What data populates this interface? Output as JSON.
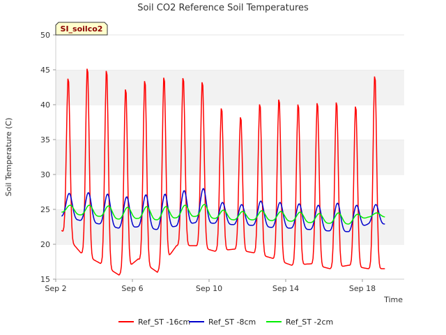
{
  "chart_data": {
    "type": "line",
    "title": "Soil CO2 Reference Soil Temperatures",
    "xlabel": "Time",
    "ylabel": "Soil Temperature (C)",
    "ylim": [
      15,
      50
    ],
    "yticks": [
      15,
      20,
      25,
      30,
      35,
      40,
      45,
      50
    ],
    "xlim": [
      "2016-09-02",
      "2016-09-19"
    ],
    "xtick_labels": [
      "Sep 2",
      "Sep 6",
      "Sep 10",
      "Sep 14",
      "Sep 18"
    ],
    "grid": "horizontal bands",
    "legend_position": "bottom",
    "site_tag": "SI_soilco2",
    "days": [
      "Sep 2",
      "Sep 3",
      "Sep 4",
      "Sep 5",
      "Sep 6",
      "Sep 7",
      "Sep 8",
      "Sep 9",
      "Sep 10",
      "Sep 11",
      "Sep 12",
      "Sep 13",
      "Sep 14",
      "Sep 15",
      "Sep 16",
      "Sep 17",
      "Sep 18",
      "Sep 19"
    ],
    "series": [
      {
        "name": "Ref_ST -16cm",
        "color": "#ff0000",
        "daily_max": [
          44.1,
          45.6,
          45.3,
          42.6,
          43.8,
          44.3,
          44.2,
          43.6,
          39.8,
          38.5,
          40.4,
          41.1,
          40.4,
          40.6,
          40.7,
          40.1,
          44.5
        ],
        "daily_min": [
          22.0,
          18.8,
          17.3,
          15.6,
          17.9,
          16.0,
          19.8,
          19.8,
          19.0,
          19.3,
          18.8,
          18.0,
          17.0,
          17.2,
          16.5,
          17.0,
          16.5
        ]
      },
      {
        "name": "Ref_ST -8cm",
        "color": "#0000cc",
        "daily_max": [
          27.3,
          27.4,
          27.2,
          26.8,
          27.1,
          27.2,
          27.7,
          28.0,
          26.0,
          25.7,
          26.2,
          26.0,
          25.8,
          25.6,
          25.9,
          25.6,
          25.7
        ],
        "daily_min": [
          24.0,
          23.4,
          22.9,
          22.3,
          22.5,
          22.1,
          22.6,
          23.1,
          23.0,
          22.8,
          22.7,
          22.4,
          22.3,
          22.1,
          21.9,
          21.8,
          22.9
        ]
      },
      {
        "name": "Ref_ST -2cm",
        "color": "#00ee00",
        "daily_max": [
          25.6,
          25.6,
          25.5,
          25.3,
          25.4,
          25.4,
          25.6,
          25.7,
          24.9,
          24.7,
          24.8,
          24.7,
          24.6,
          24.4,
          24.5,
          24.3,
          24.5
        ],
        "daily_min": [
          24.6,
          24.2,
          24.0,
          23.6,
          23.7,
          23.5,
          23.8,
          24.0,
          23.7,
          23.5,
          23.5,
          23.4,
          23.3,
          23.1,
          23.0,
          22.9,
          23.9
        ]
      }
    ]
  }
}
